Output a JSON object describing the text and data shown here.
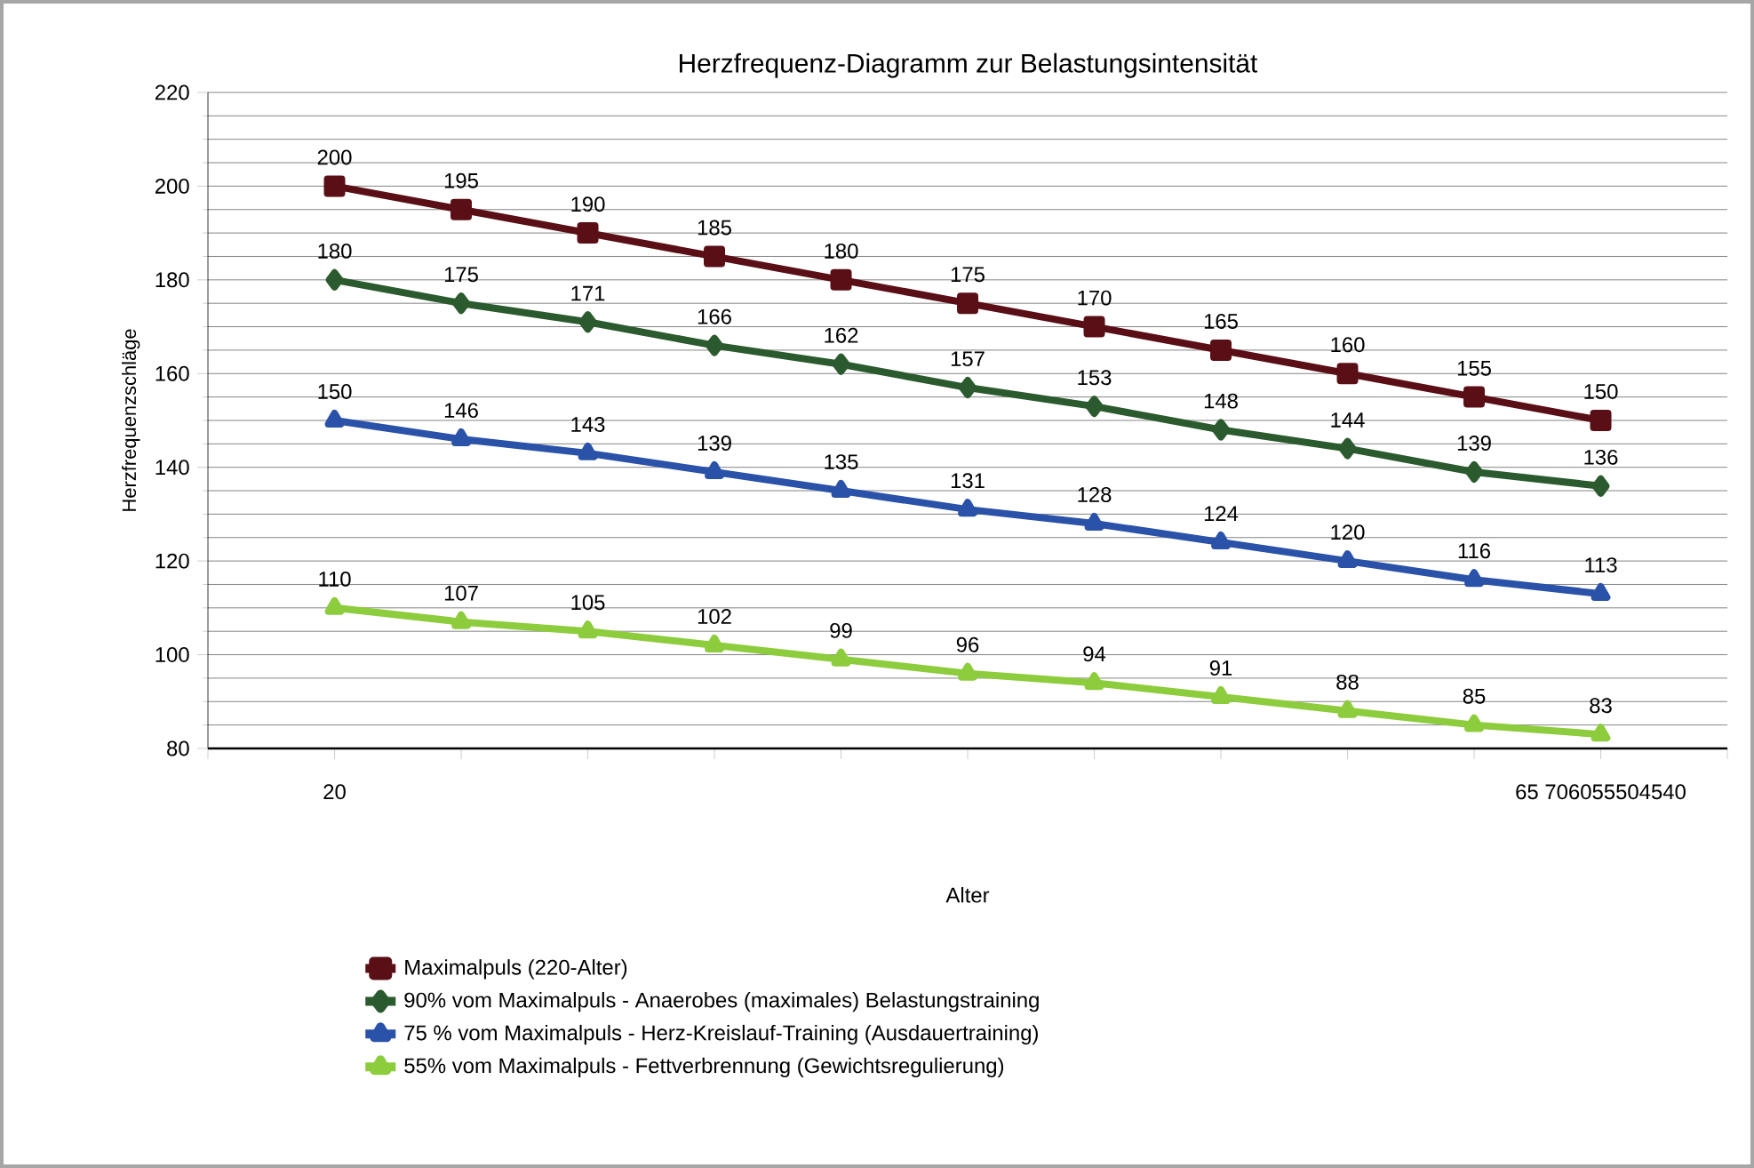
{
  "chart_data": {
    "type": "line",
    "title": "Herzfrequenz-Diagramm zur Belastungsintensität",
    "xlabel": "Alter",
    "ylabel": "Herzfrequenzschläge",
    "categories": [
      "20",
      null,
      null,
      null,
      null,
      null,
      null,
      null,
      null,
      null,
      "65 706055504540"
    ],
    "ylim": [
      80,
      220
    ],
    "yticks": [
      80,
      100,
      120,
      140,
      160,
      180,
      200,
      220
    ],
    "grid": "y",
    "legend": "bottom",
    "data_labels": true,
    "line_style": "solid",
    "series": [
      {
        "name": "Maximalpuls (220-Alter)",
        "color": "#5a0f16",
        "marker": "square",
        "values": [
          200,
          195,
          190,
          185,
          180,
          175,
          170,
          165,
          160,
          155,
          150
        ]
      },
      {
        "name": "90% vom Maximalpuls - Anaerobes (maximales) Belastungstraining",
        "color": "#2b5a2e",
        "marker": "diamond",
        "values": [
          180,
          175,
          171,
          166,
          162,
          157,
          153,
          148,
          144,
          139,
          136
        ]
      },
      {
        "name": "75 % vom Maximalpuls - Herz-Kreislauf-Training (Ausdauertraining)",
        "color": "#2a52a8",
        "marker": "triangle",
        "values": [
          150,
          146,
          143,
          139,
          135,
          131,
          128,
          124,
          120,
          116,
          113
        ]
      },
      {
        "name": "55% vom Maximalpuls - Fettverbrennung (Gewichtsregulierung)",
        "color": "#8dcc3c",
        "marker": "triangle",
        "values": [
          110,
          107,
          105,
          102,
          99,
          96,
          94,
          91,
          88,
          85,
          83
        ]
      }
    ]
  }
}
